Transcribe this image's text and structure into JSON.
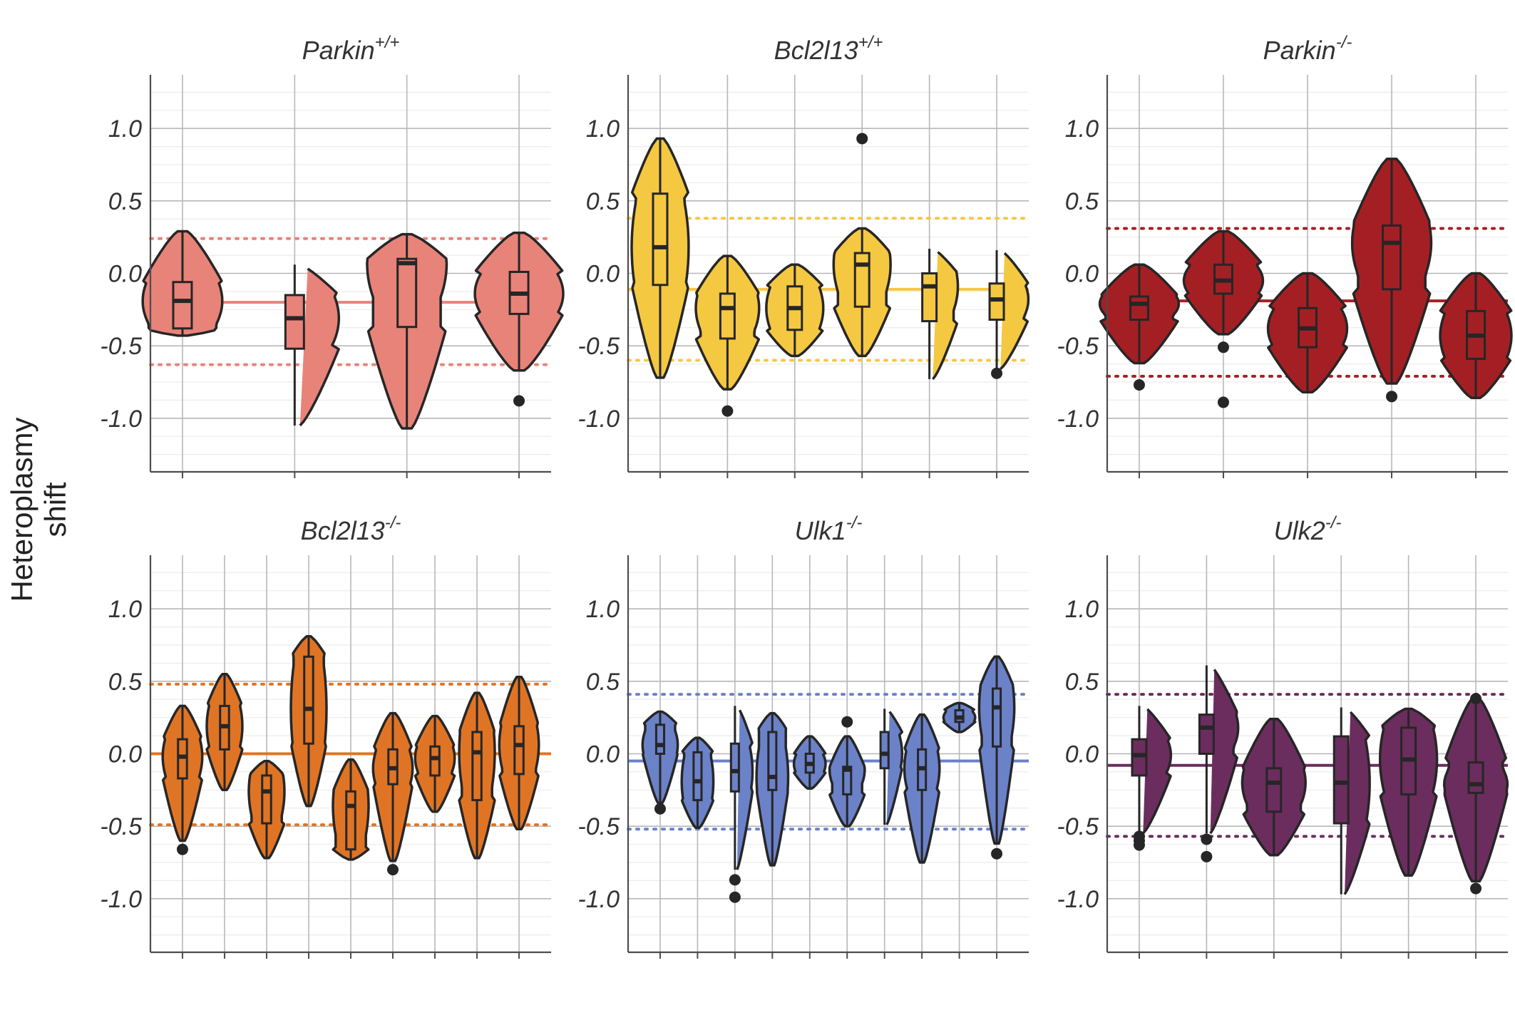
{
  "figure": {
    "ylabel": "Heteroplasmy\nshift",
    "ylabel_lines": [
      "Heteroplasmy",
      "shift"
    ],
    "yticks": [
      1.0,
      0.5,
      0.0,
      -0.5,
      -1.0
    ],
    "ytick_labels": [
      "1.0",
      "0.5",
      "0.0",
      "-0.5",
      "-1.0"
    ],
    "ylim": [
      -1.37,
      1.37
    ]
  },
  "chart_data": [
    {
      "type": "violin",
      "title_main": "Parkin",
      "title_sup": "+/+",
      "color": "#E8837A",
      "mean": -0.2,
      "upper": 0.24,
      "lower": -0.63,
      "groups": [
        {
          "min": -0.43,
          "q1": -0.38,
          "median": -0.19,
          "q3": -0.06,
          "max": 0.29,
          "outliers": []
        },
        {
          "min": -1.05,
          "q1": -0.52,
          "median": -0.31,
          "q3": -0.15,
          "max": 0.06,
          "outliers": []
        },
        {
          "min": -1.07,
          "q1": -0.37,
          "median": 0.07,
          "q3": 0.1,
          "max": 0.27,
          "outliers": []
        },
        {
          "min": -0.67,
          "q1": -0.28,
          "median": -0.14,
          "q3": 0.01,
          "max": 0.28,
          "outliers": [
            -0.88
          ]
        }
      ]
    },
    {
      "type": "violin",
      "title_main": "Bcl2l13",
      "title_sup": "+/+",
      "color": "#F5C842",
      "mean": -0.11,
      "upper": 0.38,
      "lower": -0.6,
      "groups": [
        {
          "min": -0.72,
          "q1": -0.08,
          "median": 0.18,
          "q3": 0.55,
          "max": 0.93,
          "outliers": []
        },
        {
          "min": -0.8,
          "q1": -0.45,
          "median": -0.24,
          "q3": -0.14,
          "max": 0.12,
          "outliers": [
            -0.95
          ]
        },
        {
          "min": -0.57,
          "q1": -0.39,
          "median": -0.24,
          "q3": -0.09,
          "max": 0.06,
          "outliers": []
        },
        {
          "min": -0.57,
          "q1": -0.23,
          "median": 0.06,
          "q3": 0.14,
          "max": 0.31,
          "outliers": [
            0.93
          ]
        },
        {
          "min": -0.73,
          "q1": -0.33,
          "median": -0.09,
          "q3": 0.0,
          "max": 0.17,
          "outliers": []
        },
        {
          "min": -0.66,
          "q1": -0.32,
          "median": -0.18,
          "q3": -0.07,
          "max": 0.16,
          "outliers": [
            -0.69
          ]
        }
      ]
    },
    {
      "type": "violin",
      "title_main": "Parkin",
      "title_sup": "-/-",
      "color": "#A41F24",
      "mean": -0.19,
      "upper": 0.31,
      "lower": -0.71,
      "groups": [
        {
          "min": -0.62,
          "q1": -0.32,
          "median": -0.21,
          "q3": -0.16,
          "max": 0.06,
          "outliers": [
            -0.77
          ]
        },
        {
          "min": -0.42,
          "q1": -0.14,
          "median": -0.05,
          "q3": 0.06,
          "max": 0.29,
          "outliers": [
            -0.51,
            -0.89
          ]
        },
        {
          "min": -0.82,
          "q1": -0.51,
          "median": -0.38,
          "q3": -0.24,
          "max": 0.0,
          "outliers": []
        },
        {
          "min": -0.76,
          "q1": -0.11,
          "median": 0.21,
          "q3": 0.33,
          "max": 0.79,
          "outliers": [
            -0.85
          ]
        },
        {
          "min": -0.86,
          "q1": -0.59,
          "median": -0.43,
          "q3": -0.26,
          "max": 0.0,
          "outliers": []
        }
      ]
    },
    {
      "type": "violin",
      "title_main": "Bcl2l13",
      "title_sup": "-/-",
      "color": "#E07425",
      "mean": 0.0,
      "upper": 0.48,
      "lower": -0.49,
      "groups": [
        {
          "min": -0.6,
          "q1": -0.17,
          "median": -0.02,
          "q3": 0.1,
          "max": 0.33,
          "outliers": [
            -0.66
          ]
        },
        {
          "min": -0.25,
          "q1": 0.03,
          "median": 0.19,
          "q3": 0.33,
          "max": 0.55,
          "outliers": []
        },
        {
          "min": -0.72,
          "q1": -0.48,
          "median": -0.26,
          "q3": -0.15,
          "max": -0.05,
          "outliers": []
        },
        {
          "min": -0.36,
          "q1": 0.07,
          "median": 0.31,
          "q3": 0.67,
          "max": 0.81,
          "outliers": []
        },
        {
          "min": -0.73,
          "q1": -0.66,
          "median": -0.36,
          "q3": -0.26,
          "max": -0.04,
          "outliers": []
        },
        {
          "min": -0.74,
          "q1": -0.21,
          "median": -0.1,
          "q3": 0.03,
          "max": 0.28,
          "outliers": [
            -0.8
          ]
        },
        {
          "min": -0.4,
          "q1": -0.15,
          "median": -0.03,
          "q3": 0.05,
          "max": 0.26,
          "outliers": []
        },
        {
          "min": -0.72,
          "q1": -0.32,
          "median": 0.01,
          "q3": 0.15,
          "max": 0.42,
          "outliers": []
        },
        {
          "min": -0.52,
          "q1": -0.14,
          "median": 0.06,
          "q3": 0.19,
          "max": 0.53,
          "outliers": []
        }
      ]
    },
    {
      "type": "violin",
      "title_main": "Ulk1",
      "title_sup": "-/-",
      "color": "#6B82C9",
      "mean": -0.05,
      "upper": 0.41,
      "lower": -0.52,
      "groups": [
        {
          "min": -0.34,
          "q1": 0.0,
          "median": 0.06,
          "q3": 0.2,
          "max": 0.29,
          "outliers": [
            -0.38
          ]
        },
        {
          "min": -0.51,
          "q1": -0.32,
          "median": -0.19,
          "q3": 0.01,
          "max": 0.11,
          "outliers": []
        },
        {
          "min": -0.8,
          "q1": -0.26,
          "median": -0.12,
          "q3": 0.07,
          "max": 0.33,
          "outliers": [
            -0.87,
            -0.99
          ]
        },
        {
          "min": -0.77,
          "q1": -0.25,
          "median": -0.16,
          "q3": 0.15,
          "max": 0.28,
          "outliers": []
        },
        {
          "min": -0.24,
          "q1": -0.13,
          "median": -0.07,
          "q3": 0.0,
          "max": 0.12,
          "outliers": []
        },
        {
          "min": -0.5,
          "q1": -0.28,
          "median": -0.11,
          "q3": -0.09,
          "max": 0.12,
          "outliers": [
            0.22
          ]
        },
        {
          "min": -0.49,
          "q1": -0.1,
          "median": 0.0,
          "q3": 0.15,
          "max": 0.31,
          "outliers": []
        },
        {
          "min": -0.75,
          "q1": -0.25,
          "median": -0.1,
          "q3": 0.03,
          "max": 0.27,
          "outliers": []
        },
        {
          "min": 0.15,
          "q1": 0.22,
          "median": 0.25,
          "q3": 0.3,
          "max": 0.35,
          "outliers": []
        },
        {
          "min": -0.62,
          "q1": 0.05,
          "median": 0.32,
          "q3": 0.45,
          "max": 0.67,
          "outliers": [
            -0.69
          ]
        }
      ]
    },
    {
      "type": "violin",
      "title_main": "Ulk2",
      "title_sup": "-/-",
      "color": "#6B2D5E",
      "mean": -0.08,
      "upper": 0.41,
      "lower": -0.57,
      "groups": [
        {
          "min": -0.55,
          "q1": -0.15,
          "median": -0.01,
          "q3": 0.1,
          "max": 0.33,
          "outliers": [
            -0.57,
            -0.6,
            -0.63
          ]
        },
        {
          "min": -0.55,
          "q1": 0.0,
          "median": 0.18,
          "q3": 0.27,
          "max": 0.61,
          "outliers": [
            -0.59,
            -0.71
          ]
        },
        {
          "min": -0.7,
          "q1": -0.4,
          "median": -0.2,
          "q3": -0.1,
          "max": 0.24,
          "outliers": []
        },
        {
          "min": -0.97,
          "q1": -0.48,
          "median": -0.2,
          "q3": 0.12,
          "max": 0.32,
          "outliers": []
        },
        {
          "min": -0.84,
          "q1": -0.28,
          "median": -0.04,
          "q3": 0.18,
          "max": 0.31,
          "outliers": []
        },
        {
          "min": -0.88,
          "q1": -0.27,
          "median": -0.21,
          "q3": -0.06,
          "max": 0.38,
          "outliers": [
            0.38,
            -0.93
          ]
        }
      ]
    }
  ]
}
